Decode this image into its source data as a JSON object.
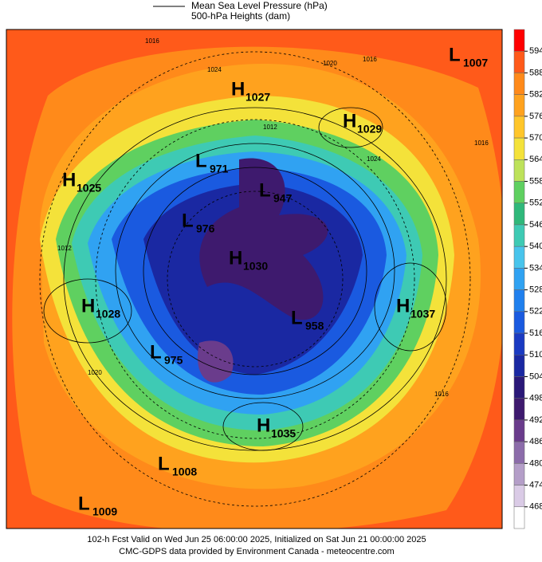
{
  "legend": {
    "mslp": "Mean Sea Level Pressure (hPa)",
    "heights": "500-hPa Heights (dam)"
  },
  "colorbar": {
    "ticks": [
      594,
      588,
      582,
      576,
      570,
      564,
      558,
      552,
      546,
      540,
      534,
      528,
      522,
      516,
      510,
      504,
      498,
      492,
      486,
      480,
      474,
      468
    ],
    "colors": [
      "#ff0000",
      "#ff5a1a",
      "#ff8a1a",
      "#ffa21e",
      "#ffc62a",
      "#f4e23a",
      "#bde25a",
      "#5fd060",
      "#2fb87a",
      "#3ecab4",
      "#48c4ec",
      "#30a2f2",
      "#2080ee",
      "#1a5ae0",
      "#1a3ac2",
      "#1a28a2",
      "#2a1878",
      "#3e1a6e",
      "#6a3c8c",
      "#8c6caa",
      "#b49ec8",
      "#dacbe6",
      "#ffffff"
    ]
  },
  "centers": [
    {
      "type": "H",
      "value": 1027
    },
    {
      "type": "H",
      "value": 1029
    },
    {
      "type": "L",
      "value": 1007
    },
    {
      "type": "H",
      "value": 1025
    },
    {
      "type": "L",
      "value": 971
    },
    {
      "type": "L",
      "value": 947
    },
    {
      "type": "L",
      "value": 976
    },
    {
      "type": "H",
      "value": 1030
    },
    {
      "type": "H",
      "value": 1028
    },
    {
      "type": "H",
      "value": 1037
    },
    {
      "type": "L",
      "value": 958
    },
    {
      "type": "L",
      "value": 975
    },
    {
      "type": "H",
      "value": 1035
    },
    {
      "type": "L",
      "value": 1008
    },
    {
      "type": "L",
      "value": 1009
    }
  ],
  "isobar_labels": [
    1016,
    1020,
    1016,
    1024,
    1012,
    1012,
    1024,
    1016,
    1020,
    1016
  ],
  "footer": {
    "line1": "102-h Fcst Valid on Wed Jun 25 06:00:00 2025, Initialized on Sat Jun 21 00:00:00 2025",
    "line2": "CMC-GDPS data provided by Environment Canada - meteocentre.com"
  }
}
